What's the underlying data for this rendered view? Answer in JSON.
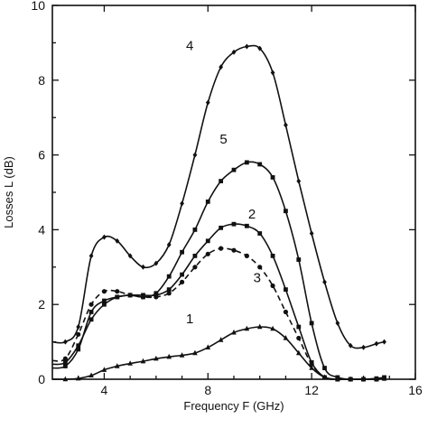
{
  "chart_data": {
    "type": "line",
    "xlabel": "Frequency  F  (GHz)",
    "ylabel": "Losses  L  (dB)",
    "xlim": [
      2,
      16
    ],
    "ylim": [
      0,
      10
    ],
    "xticks": [
      4,
      8,
      12,
      16
    ],
    "yticks": [
      0,
      2,
      4,
      6,
      8,
      10
    ],
    "grid": false,
    "series": [
      {
        "name": "1",
        "marker": "triangle",
        "style": "solid",
        "label_at": [
          7.3,
          1.5
        ],
        "x": [
          2.0,
          2.5,
          3.0,
          3.5,
          4.0,
          4.5,
          5.0,
          5.5,
          6.0,
          6.5,
          7.0,
          7.5,
          8.0,
          8.5,
          9.0,
          9.5,
          10.0,
          10.5,
          11.0,
          11.5,
          12.0,
          12.5,
          13.0,
          13.5,
          14.0,
          14.5,
          14.8
        ],
        "y": [
          0.0,
          0.0,
          0.02,
          0.1,
          0.25,
          0.35,
          0.42,
          0.48,
          0.55,
          0.6,
          0.64,
          0.7,
          0.85,
          1.05,
          1.25,
          1.35,
          1.4,
          1.35,
          1.1,
          0.7,
          0.3,
          0.05,
          0.0,
          0.0,
          0.0,
          0.0,
          0.02
        ]
      },
      {
        "name": "2",
        "marker": "square",
        "style": "solid",
        "label_at": [
          9.7,
          4.3
        ],
        "x": [
          2.0,
          2.5,
          3.0,
          3.5,
          4.0,
          4.5,
          5.0,
          5.5,
          6.0,
          6.5,
          7.0,
          7.5,
          8.0,
          8.5,
          9.0,
          9.5,
          10.0,
          10.5,
          11.0,
          11.5,
          12.0,
          12.5,
          13.0,
          13.5,
          14.0,
          14.5,
          14.8
        ],
        "y": [
          0.4,
          0.45,
          0.9,
          1.6,
          2.0,
          2.2,
          2.25,
          2.25,
          2.25,
          2.4,
          2.8,
          3.3,
          3.7,
          4.05,
          4.15,
          4.1,
          3.9,
          3.3,
          2.4,
          1.4,
          0.45,
          0.05,
          0.0,
          0.0,
          0.0,
          0.0,
          0.02
        ]
      },
      {
        "name": "3",
        "marker": "circle",
        "style": "dashed",
        "label_at": [
          9.9,
          2.6
        ],
        "x": [
          2.0,
          2.5,
          3.0,
          3.5,
          4.0,
          4.5,
          5.0,
          5.5,
          6.0,
          6.5,
          7.0,
          7.5,
          8.0,
          8.5,
          9.0,
          9.5,
          10.0,
          10.5,
          11.0,
          11.5,
          12.0,
          12.5,
          13.0,
          13.5,
          14.0,
          14.5,
          14.8
        ],
        "y": [
          0.5,
          0.55,
          1.2,
          2.0,
          2.35,
          2.35,
          2.25,
          2.2,
          2.2,
          2.3,
          2.6,
          3.0,
          3.35,
          3.5,
          3.45,
          3.3,
          3.0,
          2.5,
          1.8,
          1.1,
          0.4,
          0.05,
          0.0,
          0.0,
          0.0,
          0.0,
          0.02
        ]
      },
      {
        "name": "4",
        "marker": "diamond",
        "style": "solid",
        "label_at": [
          7.3,
          8.8
        ],
        "x": [
          2.0,
          2.5,
          3.0,
          3.5,
          4.0,
          4.5,
          5.0,
          5.5,
          6.0,
          6.5,
          7.0,
          7.5,
          8.0,
          8.5,
          9.0,
          9.5,
          10.0,
          10.5,
          11.0,
          11.5,
          12.0,
          12.5,
          13.0,
          13.5,
          14.0,
          14.5,
          14.8
        ],
        "y": [
          1.0,
          1.0,
          1.4,
          3.3,
          3.8,
          3.7,
          3.3,
          3.0,
          3.1,
          3.6,
          4.7,
          6.0,
          7.4,
          8.35,
          8.75,
          8.9,
          8.85,
          8.2,
          6.8,
          5.3,
          3.9,
          2.6,
          1.5,
          0.9,
          0.85,
          0.95,
          1.0
        ]
      },
      {
        "name": "5",
        "marker": "square",
        "style": "solid",
        "label_at": [
          8.6,
          6.3
        ],
        "x": [
          2.0,
          2.5,
          3.0,
          3.5,
          4.0,
          4.5,
          5.0,
          5.5,
          6.0,
          6.5,
          7.0,
          7.5,
          8.0,
          8.5,
          9.0,
          9.5,
          10.0,
          10.5,
          11.0,
          11.5,
          12.0,
          12.5,
          13.0,
          13.5,
          14.0,
          14.5,
          14.8
        ],
        "y": [
          0.3,
          0.35,
          0.8,
          1.8,
          2.1,
          2.2,
          2.25,
          2.2,
          2.3,
          2.75,
          3.4,
          4.0,
          4.75,
          5.3,
          5.6,
          5.8,
          5.75,
          5.4,
          4.5,
          3.2,
          1.5,
          0.3,
          0.05,
          0.0,
          0.0,
          0.02,
          0.05
        ]
      }
    ]
  }
}
